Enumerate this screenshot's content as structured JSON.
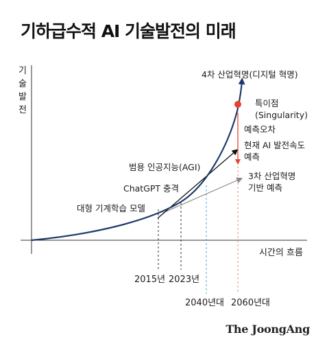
{
  "title": "기하급수적 AI 기술발전의 미래",
  "brand": "The JoongAng",
  "colors": {
    "curve": "#1c3a6b",
    "ai_line": "#111111",
    "industrial_line": "#888888",
    "singularity": "#e8412c",
    "error_arrow": "#e8412c",
    "dashed_gray": "#333333",
    "dashed_blue": "#4aa3d6",
    "dashed_red": "#f08a75"
  },
  "chart_data": {
    "type": "line",
    "title": "기하급수적 AI 기술발전의 미래",
    "ylabel": "기술발전",
    "xlabel": "시간의 흐름",
    "grid": false,
    "legend": "none",
    "x_ticks": [
      "2015년",
      "2023년",
      "2040년대",
      "2060년대"
    ],
    "series": [
      {
        "name": "4차 산업혁명(디지털 혁명)",
        "style": "exponential curve"
      },
      {
        "name": "현재 AI 발전속도 예측",
        "style": "straight line"
      },
      {
        "name": "3차 산업혁명 기반 예측",
        "style": "straight line"
      }
    ],
    "annotations": [
      {
        "id": "singularity",
        "text_line1": "특이점",
        "text_line2": "(Singularity)"
      },
      {
        "id": "error",
        "text": "예측오차"
      },
      {
        "id": "agi",
        "text": "범용 인공지능(AGI)"
      },
      {
        "id": "chatgpt",
        "text": "ChatGPT 충격"
      },
      {
        "id": "llm",
        "text": "대형 기계학습 모델"
      },
      {
        "id": "ai_pace_line1",
        "text": "현재 AI 발전속도"
      },
      {
        "id": "ai_pace_line2",
        "text": "예측"
      },
      {
        "id": "third_line1",
        "text": "3차 산업혁명"
      },
      {
        "id": "third_line2",
        "text": "기반 예측"
      }
    ]
  }
}
